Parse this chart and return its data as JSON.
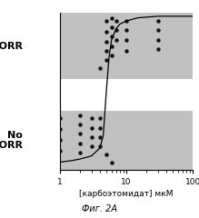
{
  "xlabel": "[карбоэтомидат] мкМ",
  "fig_label": "Фиг. 2А",
  "ylabel_top": "LORR",
  "ylabel_bottom": "No\nLORR",
  "xlim": [
    1,
    100
  ],
  "band_color": "#c0c0c0",
  "dot_color": "#111111",
  "background_color": "#ffffff",
  "lorr_band": [
    0.58,
    1.0
  ],
  "no_lorr_band": [
    0.0,
    0.38
  ],
  "ylim": [
    0.0,
    1.0
  ],
  "lorr_dots_by_x": {
    "5": [
      0.95,
      0.88,
      0.82,
      0.76,
      0.7
    ],
    "6": [
      0.97,
      0.91,
      0.85,
      0.79,
      0.73
    ],
    "7": [
      0.95,
      0.89,
      0.83
    ],
    "10": [
      0.95,
      0.89,
      0.83,
      0.76
    ],
    "30": [
      0.95,
      0.89,
      0.83,
      0.77
    ],
    "4": [
      0.65
    ]
  },
  "no_lorr_dots_by_x": {
    "1": [
      0.33,
      0.26,
      0.19,
      0.12
    ],
    "2": [
      0.35,
      0.29,
      0.23,
      0.17,
      0.11
    ],
    "3": [
      0.33,
      0.27,
      0.21,
      0.15
    ],
    "4": [
      0.33,
      0.27,
      0.21,
      0.15
    ],
    "5": [
      0.1
    ],
    "6": [
      0.05
    ]
  },
  "sigmoid_x": [
    1.0,
    1.5,
    2.0,
    3.0,
    4.0,
    4.5,
    5.0,
    5.5,
    6.0,
    7.0,
    8.0,
    10.0,
    15.0,
    30.0,
    100.0
  ],
  "sigmoid_y": [
    0.05,
    0.06,
    0.07,
    0.09,
    0.14,
    0.22,
    0.5,
    0.72,
    0.83,
    0.9,
    0.93,
    0.95,
    0.97,
    0.98,
    0.98
  ]
}
